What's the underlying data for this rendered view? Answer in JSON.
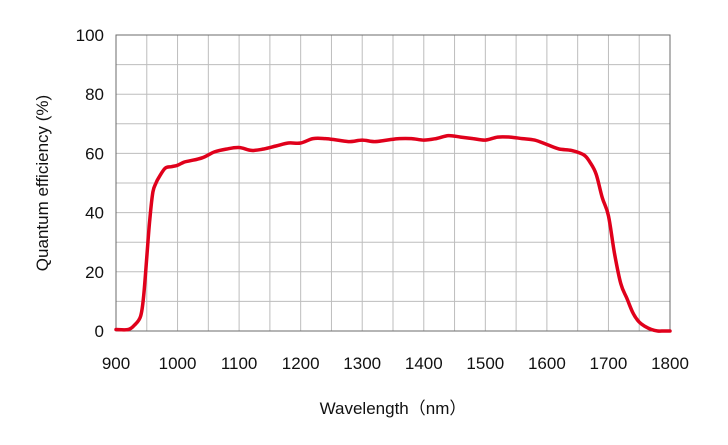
{
  "chart_data": {
    "type": "line",
    "title": "",
    "xlabel": "Wavelength（nm）",
    "ylabel": "Quantum efficiency (%)",
    "xlim": [
      900,
      1800
    ],
    "ylim": [
      0,
      100
    ],
    "x_ticks": [
      "900",
      "1000",
      "1100",
      "1200",
      "1300",
      "1400",
      "1500",
      "1600",
      "1700",
      "1800"
    ],
    "y_ticks": [
      "0",
      "20",
      "40",
      "60",
      "80",
      "100"
    ],
    "grid": true,
    "legend": "none",
    "series": [
      {
        "color": "#e0001b",
        "x": [
          900,
          920,
          930,
          940,
          945,
          950,
          955,
          960,
          965,
          970,
          980,
          990,
          1000,
          1010,
          1020,
          1040,
          1060,
          1080,
          1100,
          1120,
          1140,
          1160,
          1180,
          1200,
          1220,
          1240,
          1260,
          1280,
          1300,
          1320,
          1340,
          1360,
          1380,
          1400,
          1420,
          1440,
          1460,
          1480,
          1500,
          1520,
          1540,
          1560,
          1580,
          1600,
          1620,
          1640,
          1660,
          1670,
          1680,
          1690,
          1700,
          1710,
          1720,
          1730,
          1740,
          1750,
          1760,
          1770,
          1780,
          1790,
          1800
        ],
        "y": [
          0.5,
          0.5,
          2,
          5,
          12,
          25,
          38,
          47,
          50,
          52,
          55,
          55.5,
          56,
          57,
          57.5,
          58.5,
          60.5,
          61.5,
          62,
          61,
          61.5,
          62.5,
          63.5,
          63.5,
          65,
          65,
          64.5,
          64,
          64.5,
          64,
          64.5,
          65,
          65,
          64.5,
          65,
          66,
          65.5,
          65,
          64.5,
          65.5,
          65.5,
          65,
          64.5,
          63,
          61.5,
          61,
          59.5,
          57,
          53,
          45,
          39,
          26,
          16,
          11,
          6,
          3,
          1.5,
          0.5,
          0,
          0,
          0
        ]
      }
    ]
  }
}
